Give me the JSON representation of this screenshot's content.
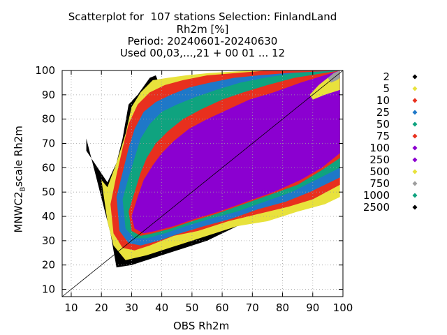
{
  "chart_data": {
    "type": "scatter",
    "title": [
      "Scatterplot for  107 stations Selection: FinlandLand",
      "Rh2m [%]",
      "Period: 20240601-20240630",
      "Used 00,03,...,21 + 00 01 ... 12"
    ],
    "xlabel": "OBS Rh2m",
    "ylabel": {
      "main": "MNWC2",
      "sub": "B",
      "rest": "scale Rh2m"
    },
    "xlim": [
      7,
      100
    ],
    "ylim": [
      7,
      100
    ],
    "xticks": [
      10,
      20,
      30,
      40,
      50,
      60,
      70,
      80,
      90,
      100
    ],
    "yticks": [
      10,
      20,
      30,
      40,
      50,
      60,
      70,
      80,
      90,
      100
    ],
    "grid": true,
    "diagonal": true,
    "legend_position": "right",
    "legend": [
      {
        "label": "2",
        "color": "#000000",
        "marker": "diamond"
      },
      {
        "label": "5",
        "color": "#e8e23c",
        "marker": "diamond"
      },
      {
        "label": "10",
        "color": "#e8301e",
        "marker": "diamond"
      },
      {
        "label": "25",
        "color": "#1f78c8",
        "marker": "diamond"
      },
      {
        "label": "50",
        "color": "#0fa37f",
        "marker": "diamond"
      },
      {
        "label": "75",
        "color": "#e8301e",
        "marker": "diamond"
      },
      {
        "label": "100",
        "color": "#8b00d0",
        "marker": "diamond"
      },
      {
        "label": "250",
        "color": "#8b00d0",
        "marker": "diamond"
      },
      {
        "label": "500",
        "color": "#e8e23c",
        "marker": "diamond"
      },
      {
        "label": "750",
        "color": "#9e9e9e",
        "marker": "diamond"
      },
      {
        "label": "1000",
        "color": "#0fa37f",
        "marker": "diamond"
      },
      {
        "label": "2500",
        "color": "#000000",
        "marker": "diamond"
      }
    ],
    "density_bands": [
      {
        "level": "2",
        "color": "#000000",
        "upper": [
          [
            15,
            72
          ],
          [
            15,
            67
          ],
          [
            22,
            54
          ],
          [
            25,
            62
          ],
          [
            27,
            72
          ],
          [
            29,
            86
          ],
          [
            32,
            90
          ],
          [
            36,
            97
          ],
          [
            38,
            98
          ],
          [
            40,
            92
          ]
        ],
        "lower": [
          [
            23,
            33
          ],
          [
            25,
            19
          ],
          [
            30,
            20
          ],
          [
            40,
            24
          ],
          [
            55,
            30
          ],
          [
            65,
            36
          ],
          [
            80,
            40
          ],
          [
            90,
            45
          ],
          [
            99,
            52
          ]
        ]
      },
      {
        "level": "5",
        "color": "#e8e23c",
        "upper": [
          [
            20,
            55
          ],
          [
            22,
            52
          ],
          [
            25,
            62
          ],
          [
            28,
            74
          ],
          [
            30,
            85
          ],
          [
            33,
            91
          ],
          [
            37,
            96
          ],
          [
            42,
            97
          ],
          [
            48,
            98
          ],
          [
            56,
            99
          ],
          [
            70,
            100
          ],
          [
            99,
            100
          ]
        ],
        "lower": [
          [
            22,
            38
          ],
          [
            24,
            28
          ],
          [
            28,
            22
          ],
          [
            35,
            24
          ],
          [
            45,
            28
          ],
          [
            55,
            32
          ],
          [
            65,
            36
          ],
          [
            75,
            38
          ],
          [
            85,
            42
          ],
          [
            94,
            45
          ],
          [
            99,
            48
          ]
        ]
      },
      {
        "level": "10",
        "color": "#e8301e",
        "upper": [
          [
            23,
            45
          ],
          [
            25,
            57
          ],
          [
            27,
            68
          ],
          [
            29,
            78
          ],
          [
            32,
            86
          ],
          [
            36,
            91
          ],
          [
            41,
            94
          ],
          [
            47,
            96
          ],
          [
            55,
            98
          ],
          [
            65,
            99
          ],
          [
            75,
            100
          ],
          [
            99,
            100
          ]
        ],
        "lower": [
          [
            24,
            33
          ],
          [
            27,
            27
          ],
          [
            31,
            26
          ],
          [
            36,
            28
          ],
          [
            44,
            32
          ],
          [
            52,
            34
          ],
          [
            62,
            38
          ],
          [
            72,
            41
          ],
          [
            82,
            44
          ],
          [
            90,
            47
          ],
          [
            99,
            53
          ]
        ]
      },
      {
        "level": "25",
        "color": "#1f78c8",
        "upper": [
          [
            25,
            48
          ],
          [
            27,
            58
          ],
          [
            29,
            68
          ],
          [
            31,
            76
          ],
          [
            34,
            83
          ],
          [
            38,
            87
          ],
          [
            43,
            90
          ],
          [
            49,
            93
          ],
          [
            56,
            95
          ],
          [
            64,
            97
          ],
          [
            72,
            98
          ],
          [
            82,
            99
          ],
          [
            99,
            100
          ]
        ],
        "lower": [
          [
            26,
            34
          ],
          [
            29,
            29
          ],
          [
            33,
            28
          ],
          [
            39,
            30
          ],
          [
            46,
            33
          ],
          [
            54,
            36
          ],
          [
            63,
            39
          ],
          [
            72,
            43
          ],
          [
            81,
            46
          ],
          [
            89,
            50
          ],
          [
            99,
            56
          ]
        ]
      },
      {
        "level": "50",
        "color": "#0fa37f",
        "upper": [
          [
            27,
            47
          ],
          [
            29,
            56
          ],
          [
            31,
            64
          ],
          [
            33,
            72
          ],
          [
            36,
            78
          ],
          [
            40,
            83
          ],
          [
            45,
            86
          ],
          [
            51,
            89
          ],
          [
            58,
            92
          ],
          [
            66,
            95
          ],
          [
            74,
            97
          ],
          [
            84,
            99
          ],
          [
            99,
            100
          ]
        ],
        "lower": [
          [
            28,
            35
          ],
          [
            31,
            31
          ],
          [
            35,
            31
          ],
          [
            41,
            33
          ],
          [
            48,
            36
          ],
          [
            56,
            39
          ],
          [
            65,
            42
          ],
          [
            74,
            46
          ],
          [
            83,
            50
          ],
          [
            91,
            55
          ],
          [
            99,
            60
          ]
        ]
      },
      {
        "level": "75",
        "color": "#e8301e",
        "upper": [
          [
            29,
            42
          ],
          [
            31,
            50
          ],
          [
            33,
            58
          ],
          [
            35,
            64
          ],
          [
            38,
            70
          ],
          [
            42,
            75
          ],
          [
            47,
            80
          ],
          [
            53,
            84
          ],
          [
            60,
            88
          ],
          [
            67,
            91
          ],
          [
            75,
            94
          ],
          [
            84,
            97
          ],
          [
            99,
            100
          ]
        ],
        "lower": [
          [
            30,
            34
          ],
          [
            33,
            32
          ],
          [
            37,
            33
          ],
          [
            43,
            35
          ],
          [
            50,
            38
          ],
          [
            58,
            41
          ],
          [
            67,
            45
          ],
          [
            76,
            49
          ],
          [
            85,
            53
          ],
          [
            93,
            59
          ],
          [
            99,
            64
          ]
        ]
      },
      {
        "level": "100",
        "color": "#8b00d0",
        "upper": [
          [
            30,
            40
          ],
          [
            32,
            48
          ],
          [
            34,
            55
          ],
          [
            37,
            61
          ],
          [
            40,
            66
          ],
          [
            44,
            71
          ],
          [
            49,
            76
          ],
          [
            55,
            80
          ],
          [
            62,
            84
          ],
          [
            69,
            88
          ],
          [
            77,
            91
          ],
          [
            86,
            95
          ],
          [
            99,
            100
          ]
        ],
        "lower": [
          [
            31,
            35
          ],
          [
            34,
            33
          ],
          [
            38,
            34
          ],
          [
            44,
            36
          ],
          [
            51,
            39
          ],
          [
            59,
            42
          ],
          [
            68,
            46
          ],
          [
            77,
            50
          ],
          [
            86,
            55
          ],
          [
            93,
            60
          ],
          [
            99,
            66
          ]
        ]
      },
      {
        "level": "250",
        "color": "#8b00d0",
        "upper": [
          [
            33,
            38
          ],
          [
            36,
            46
          ],
          [
            39,
            52
          ],
          [
            43,
            58
          ],
          [
            48,
            63
          ],
          [
            54,
            68
          ],
          [
            61,
            74
          ],
          [
            68,
            80
          ],
          [
            75,
            85
          ],
          [
            83,
            90
          ],
          [
            90,
            94
          ],
          [
            99,
            100
          ]
        ],
        "lower": [
          [
            34,
            35
          ],
          [
            38,
            36
          ],
          [
            44,
            38
          ],
          [
            51,
            41
          ],
          [
            59,
            44
          ],
          [
            68,
            48
          ],
          [
            77,
            53
          ],
          [
            85,
            58
          ],
          [
            92,
            64
          ],
          [
            99,
            72
          ]
        ]
      },
      {
        "level": "500",
        "color": "#e8e23c",
        "upper": [
          [
            89,
            90
          ],
          [
            92,
            94
          ],
          [
            95,
            97
          ],
          [
            99,
            100
          ]
        ],
        "lower": [
          [
            90,
            88
          ],
          [
            94,
            90
          ],
          [
            99,
            92
          ]
        ]
      },
      {
        "level": "750",
        "color": "#9e9e9e",
        "upper": [
          [
            95,
            97
          ],
          [
            97,
            99
          ],
          [
            99,
            100
          ]
        ],
        "lower": [
          [
            96,
            95
          ],
          [
            98,
            96
          ],
          [
            99,
            97
          ]
        ]
      }
    ]
  }
}
